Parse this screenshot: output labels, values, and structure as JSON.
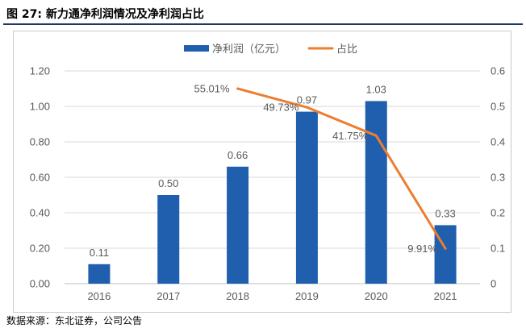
{
  "figure": {
    "title": "图  27:  新力通净利润情况及净利润占比",
    "source": "数据来源：东北证券，公司公告"
  },
  "colors": {
    "bar": "#1f5fad",
    "line": "#ed7d31",
    "axis_text": "#595959",
    "grid": "#d9d9d9"
  },
  "chart_data": {
    "type": "bar",
    "categories": [
      "2016",
      "2017",
      "2018",
      "2019",
      "2020",
      "2021"
    ],
    "series": [
      {
        "name": "净利润（亿元）",
        "type": "bar",
        "axis": "left",
        "values": [
          0.11,
          0.5,
          0.66,
          0.97,
          1.03,
          0.33
        ],
        "labels": [
          "0.11",
          "0.50",
          "0.66",
          "0.97",
          "1.03",
          "0.33"
        ]
      },
      {
        "name": "占比",
        "type": "line",
        "axis": "right",
        "x": [
          "2018",
          "2019",
          "2020",
          "2021"
        ],
        "values": [
          0.5501,
          0.4973,
          0.4175,
          0.0991
        ],
        "labels": [
          "55.01%",
          "49.73%",
          "41.75%",
          "9.91%"
        ]
      }
    ],
    "y_left": {
      "min": 0,
      "max": 1.2,
      "ticks": [
        "0.00",
        "0.20",
        "0.40",
        "0.60",
        "0.80",
        "1.00",
        "1.20"
      ]
    },
    "y_right": {
      "min": 0,
      "max": 0.6,
      "ticks": [
        "0",
        "0.1",
        "0.2",
        "0.3",
        "0.4",
        "0.5",
        "0.6"
      ]
    },
    "legend_position": "top-center",
    "grid": true
  }
}
